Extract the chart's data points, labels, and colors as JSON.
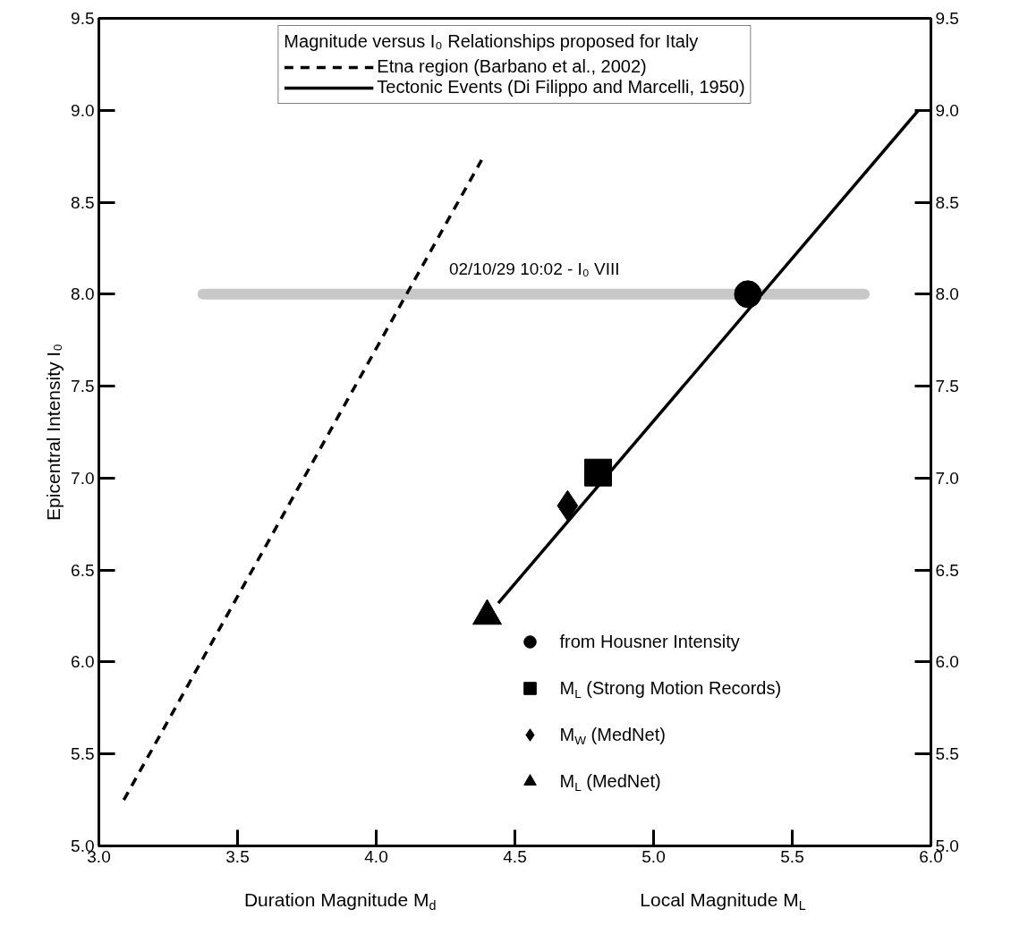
{
  "chart_data": {
    "type": "line",
    "xlabel": "Duration Magnitude M$_{d}$",
    "ylabel": "Epicentral Intensity I₀",
    "legend_title": "Magnitude versus I₀ Relationships proposed for Italy",
    "annotations": [
      {
        "text": "02/10/29 10:02 - I₀ VIII",
        "x": 4.6,
        "y": 8.0
      },
      "Local Magnitude M$_{L}$"
    ],
    "xlim": [
      3.0,
      6.0
    ],
    "xticks": [
      {
        "value": 3.0,
        "label": "3.0"
      },
      3.5,
      {
        "value": 4.0,
        "label": "4.0"
      },
      4.5,
      {
        "value": 5.0,
        "label": "5.0"
      },
      5.5,
      {
        "value": 6.0,
        "label": "6.0"
      }
    ],
    "ylim": [
      5.0,
      9.5
    ],
    "yticks": [
      {
        "value": 5.0,
        "label": "5.0"
      },
      5.5,
      {
        "value": 6.0,
        "label": "6.0"
      },
      6.5,
      {
        "value": 7.0,
        "label": "7.0"
      },
      7.5,
      {
        "value": 8.0,
        "label": "8.0"
      },
      8.5,
      {
        "value": 9.0,
        "label": "9.0"
      },
      9.5
    ],
    "y2lim": [
      5.0,
      9.5
    ],
    "y2ticks": [
      {
        "value": 5.0,
        "label": "5.0"
      },
      5.5,
      {
        "value": 6.0,
        "label": "6.0"
      },
      6.5,
      {
        "value": 7.0,
        "label": "7.0"
      },
      7.5,
      {
        "value": 8.0,
        "label": "8.0"
      },
      8.5,
      {
        "value": 9.0,
        "label": "9.0"
      },
      9.5
    ],
    "grid": false,
    "legend": "top",
    "series": [
      {
        "color": "#c8c8c8",
        "x": [
          3.375,
          5.76
        ],
        "values": [
          8.0,
          8.0
        ],
        "line_style": "solid"
      },
      {
        "name": "Etna region (Barbano et al., 2002)",
        "color": "#000000",
        "x": [
          3.09,
          4.38
        ],
        "values": [
          5.25,
          8.73
        ],
        "line_style": "dashed"
      },
      {
        "name": "Tectonic Events (Di Filippo and Marcelli, 1950)",
        "color": "#000000",
        "x": [
          4.44,
          5.955
        ],
        "values": [
          6.32,
          9.0
        ],
        "line_style": "solid"
      },
      {
        "type": "scatter",
        "name": "from Housner Intensity",
        "color": "#000000",
        "x": [
          5.34
        ],
        "values": [
          8.0
        ],
        "marker": "circle"
      },
      {
        "type": "scatter",
        "name": "M$_{L}$ (Strong Motion Records)",
        "color": "#000000",
        "x": [
          4.8
        ],
        "values": [
          7.03
        ],
        "marker": "square"
      },
      {
        "type": "scatter",
        "name": "M$_{W}$ (MedNet)",
        "color": "#000000",
        "x": [
          4.69
        ],
        "values": [
          6.85
        ],
        "marker": "diamond"
      },
      {
        "type": "scatter",
        "name": "M$_{L}$ (MedNet)",
        "color": "#000000",
        "x": [
          4.4
        ],
        "values": [
          6.25
        ],
        "marker": "triangle"
      }
    ]
  }
}
